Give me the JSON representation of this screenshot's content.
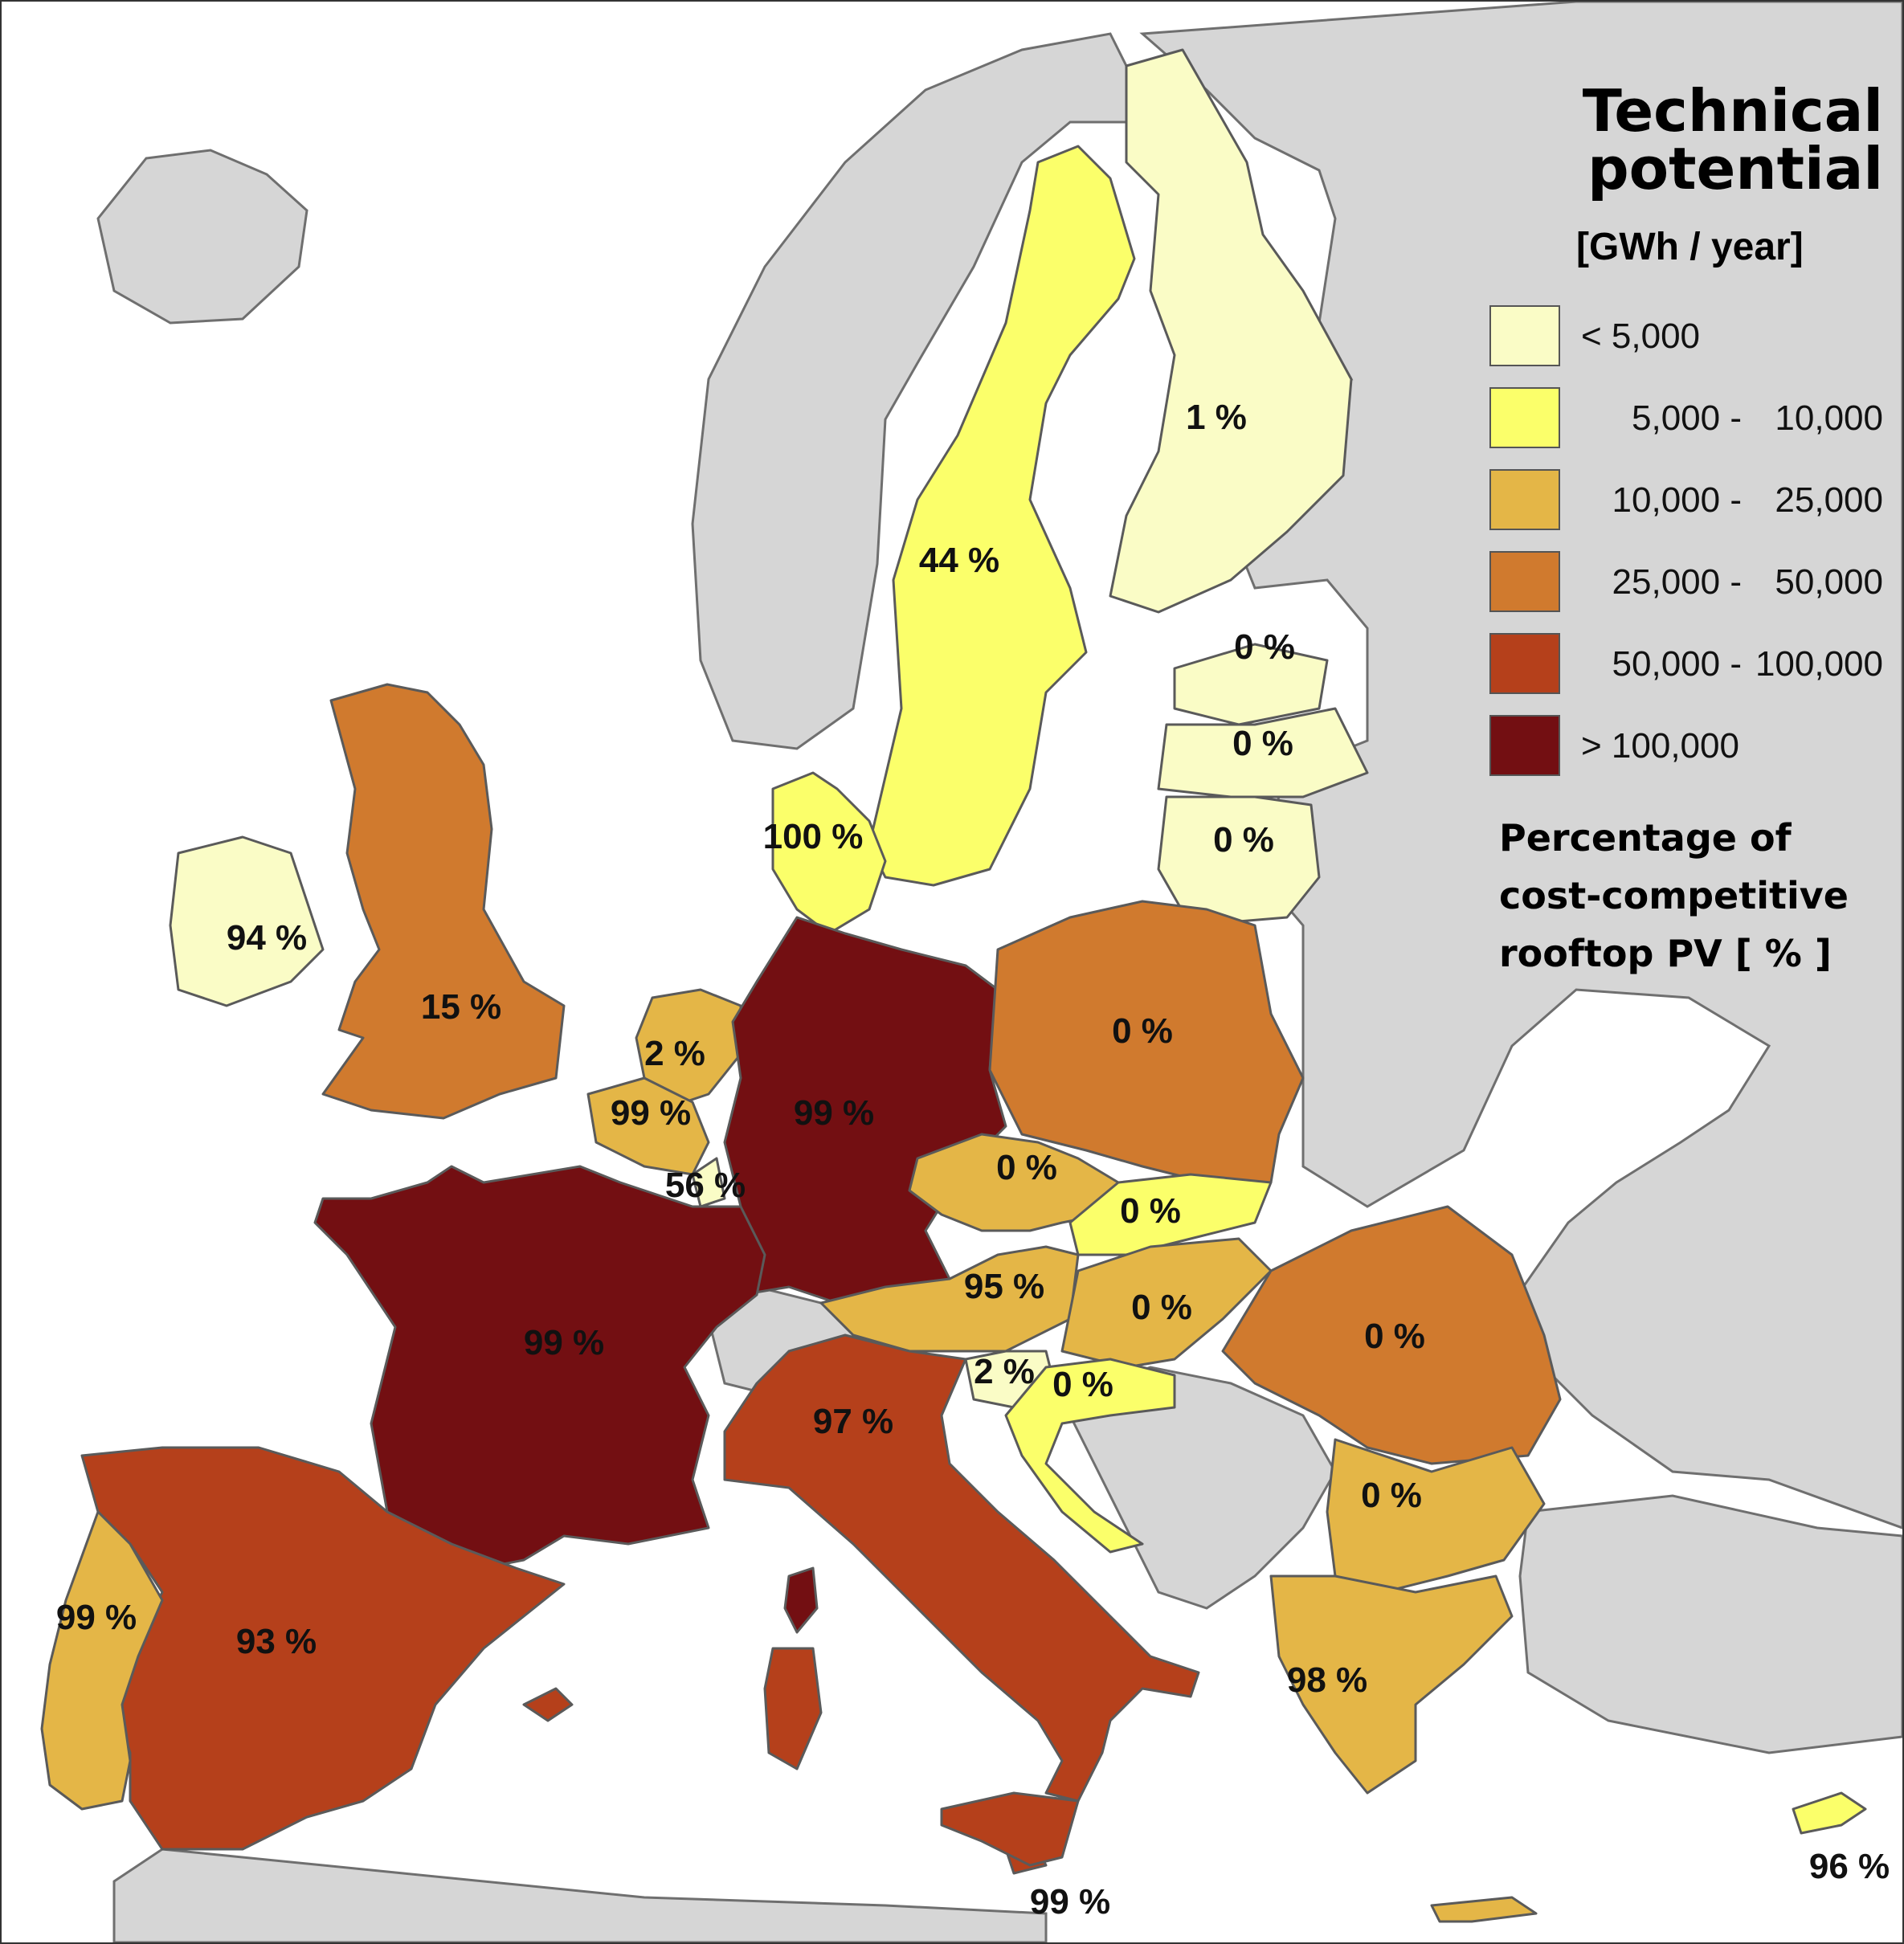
{
  "legend": {
    "title_line1": "Technical",
    "title_line2": "potential",
    "unit": "[GWh / year]",
    "classes": [
      {
        "lo": "< 5,000",
        "hi": "",
        "color": "#fafcc6"
      },
      {
        "lo": "5,000 -",
        "hi": "10,000",
        "color": "#fbff6a"
      },
      {
        "lo": "10,000 -",
        "hi": "25,000",
        "color": "#e4b647"
      },
      {
        "lo": "25,000 -",
        "hi": "50,000",
        "color": "#d07a2e"
      },
      {
        "lo": "50,000 -",
        "hi": "100,000",
        "color": "#b5401b"
      },
      {
        "lo": "> 100,000",
        "hi": "",
        "color": "#730f12"
      }
    ],
    "pct_title_line1": "Percentage of",
    "pct_title_line2": "cost-competitive",
    "pct_title_line3": "rooftop PV  [ % ]"
  },
  "colors": {
    "sea": "#ffffff",
    "non_eu_land": "#d6d6d6",
    "border": "#5a5a5a"
  },
  "countries": [
    {
      "name": "Sweden",
      "pct": "44 %",
      "class": 1
    },
    {
      "name": "Finland",
      "pct": "1 %",
      "class": 0
    },
    {
      "name": "Estonia",
      "pct": "0 %",
      "class": 0
    },
    {
      "name": "Latvia",
      "pct": "0 %",
      "class": 0
    },
    {
      "name": "Lithuania",
      "pct": "0 %",
      "class": 0
    },
    {
      "name": "Denmark",
      "pct": "100 %",
      "class": 1
    },
    {
      "name": "Ireland",
      "pct": "94 %",
      "class": 0
    },
    {
      "name": "United Kingdom",
      "pct": "15 %",
      "class": 3
    },
    {
      "name": "Netherlands",
      "pct": "2 %",
      "class": 2
    },
    {
      "name": "Belgium",
      "pct": "99 %",
      "class": 2
    },
    {
      "name": "Luxembourg",
      "pct": "56 %",
      "class": 0
    },
    {
      "name": "Germany",
      "pct": "99 %",
      "class": 5
    },
    {
      "name": "Poland",
      "pct": "0 %",
      "class": 3
    },
    {
      "name": "Czech Republic",
      "pct": "0 %",
      "class": 2
    },
    {
      "name": "Slovakia",
      "pct": "0 %",
      "class": 1
    },
    {
      "name": "Austria",
      "pct": "95 %",
      "class": 2
    },
    {
      "name": "Hungary",
      "pct": "0 %",
      "class": 2
    },
    {
      "name": "Romania",
      "pct": "0 %",
      "class": 3
    },
    {
      "name": "France",
      "pct": "99 %",
      "class": 5
    },
    {
      "name": "Slovenia",
      "pct": "2 %",
      "class": 0
    },
    {
      "name": "Croatia",
      "pct": "0 %",
      "class": 1
    },
    {
      "name": "Italy",
      "pct": "97 %",
      "class": 4
    },
    {
      "name": "Bulgaria",
      "pct": "0 %",
      "class": 2
    },
    {
      "name": "Spain",
      "pct": "93 %",
      "class": 4
    },
    {
      "name": "Portugal",
      "pct": "99 %",
      "class": 2
    },
    {
      "name": "Greece",
      "pct": "98 %",
      "class": 2
    },
    {
      "name": "Malta",
      "pct": "99 %",
      "class": 4
    },
    {
      "name": "Cyprus",
      "pct": "96 %",
      "class": 1
    }
  ]
}
